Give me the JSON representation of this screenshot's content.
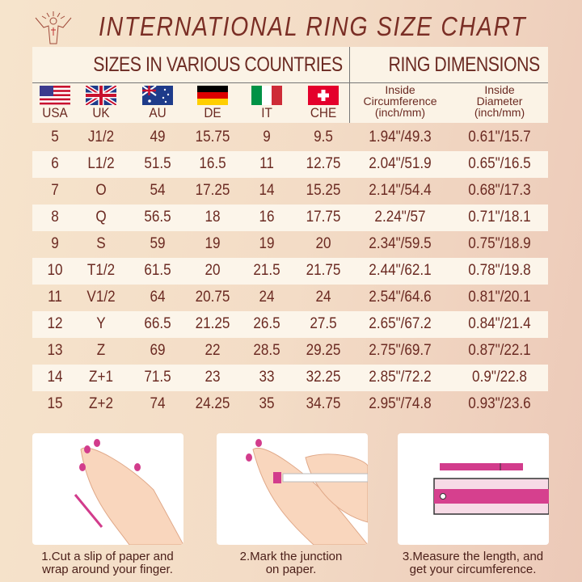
{
  "title": "INTERNATIONAL RING SIZE CHART",
  "logo_text": "",
  "header": {
    "sizes_title": "SIZES IN VARIOUS COUNTRIES",
    "dims_title": "RING DIMENSIONS",
    "countries": [
      {
        "code": "USA",
        "flag": "us-flag"
      },
      {
        "code": "UK",
        "flag": "uk-flag"
      },
      {
        "code": "AU",
        "flag": "au-flag"
      },
      {
        "code": "DE",
        "flag": "de-flag"
      },
      {
        "code": "IT",
        "flag": "it-flag"
      },
      {
        "code": "CHE",
        "flag": "ch-flag"
      }
    ],
    "circ": [
      "Inside",
      "Circumference",
      "(inch/mm)"
    ],
    "diam": [
      "Inside",
      "Diameter",
      "(inch/mm)"
    ]
  },
  "rows": [
    [
      "5",
      "J1/2",
      "49",
      "15.75",
      "9",
      "9.5",
      "1.94\"/49.3",
      "0.61\"/15.7"
    ],
    [
      "6",
      "L1/2",
      "51.5",
      "16.5",
      "11",
      "12.75",
      "2.04\"/51.9",
      "0.65\"/16.5"
    ],
    [
      "7",
      "O",
      "54",
      "17.25",
      "14",
      "15.25",
      "2.14\"/54.4",
      "0.68\"/17.3"
    ],
    [
      "8",
      "Q",
      "56.5",
      "18",
      "16",
      "17.75",
      "2.24\"/57",
      "0.71\"/18.1"
    ],
    [
      "9",
      "S",
      "59",
      "19",
      "19",
      "20",
      "2.34\"/59.5",
      "0.75\"/18.9"
    ],
    [
      "10",
      "T1/2",
      "61.5",
      "20",
      "21.5",
      "21.75",
      "2.44\"/62.1",
      "0.78\"/19.8"
    ],
    [
      "11",
      "V1/2",
      "64",
      "20.75",
      "24",
      "24",
      "2.54\"/64.6",
      "0.81\"/20.1"
    ],
    [
      "12",
      "Y",
      "66.5",
      "21.25",
      "26.5",
      "27.5",
      "2.65\"/67.2",
      "0.84\"/21.4"
    ],
    [
      "13",
      "Z",
      "69",
      "22",
      "28.5",
      "29.25",
      "2.75\"/69.7",
      "0.87\"/22.1"
    ],
    [
      "14",
      "Z+1",
      "71.5",
      "23",
      "33",
      "32.25",
      "2.85\"/72.2",
      "0.9\"/22.8"
    ],
    [
      "15",
      "Z+2",
      "74",
      "24.25",
      "35",
      "34.75",
      "2.95\"/74.8",
      "0.93\"/23.6"
    ]
  ],
  "steps": [
    {
      "line1": "1.Cut a slip of paper and",
      "line2": "wrap around your finger."
    },
    {
      "line1": "2.Mark the junction",
      "line2": "on paper."
    },
    {
      "line1": "3.Measure the length, and",
      "line2": "get your circumference."
    }
  ],
  "colors": {
    "text": "#6b2a22",
    "accent": "#d23c8c",
    "row_alt": "#fcf5ea"
  }
}
